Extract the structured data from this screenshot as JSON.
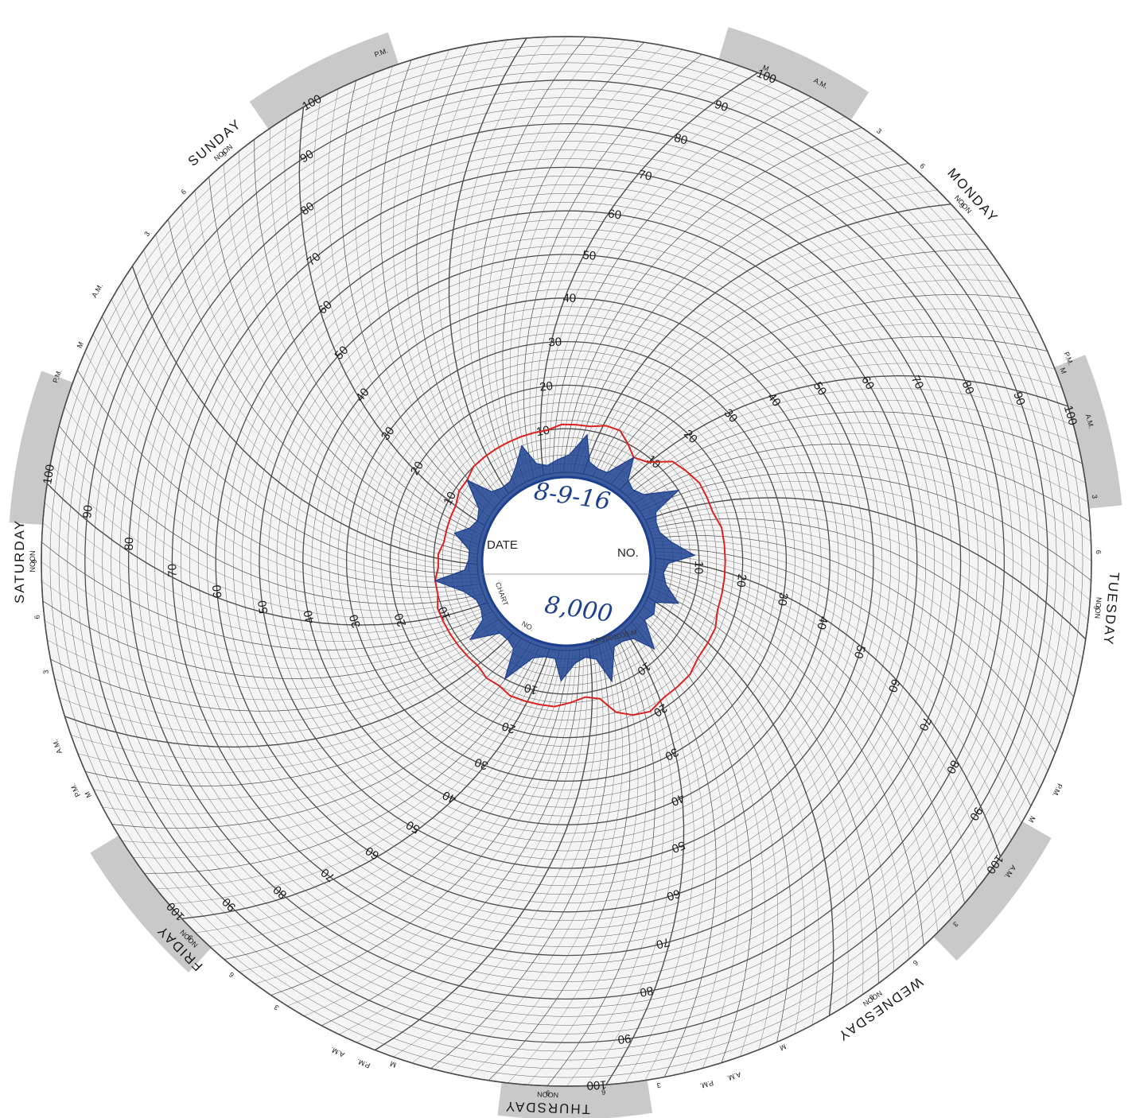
{
  "chart_data": {
    "type": "polar-line",
    "radial_scale": {
      "min": 0,
      "max": 100,
      "major_step": 10
    },
    "scale_labels": [
      "10",
      "20",
      "30",
      "40",
      "50",
      "60",
      "70",
      "80",
      "90",
      "100"
    ],
    "days": [
      "SUNDAY",
      "MONDAY",
      "TUESDAY",
      "WEDNESDAY",
      "THURSDAY",
      "FRIDAY",
      "SATURDAY"
    ],
    "noon_label": "NOON",
    "am_label": "A.M.",
    "pm_label": "P.M.",
    "midnight_label": "M",
    "hour_labels": [
      "3",
      "6",
      "9"
    ],
    "colors": {
      "grid": "#4d4d4d",
      "day_band": "#c9c9c9",
      "trace_red": "#d9231f",
      "trace_blue": "#1c3f8f"
    },
    "series": [
      {
        "color": "red",
        "values": [
          11,
          11,
          12,
          12,
          10,
          8,
          9,
          13,
          14,
          15,
          15,
          15,
          16,
          16,
          16,
          16,
          16,
          16,
          17,
          17,
          17,
          18,
          18,
          18,
          19,
          18,
          16,
          12,
          11,
          12,
          13,
          13,
          13,
          13,
          12,
          12,
          11,
          11,
          11,
          11,
          11,
          11,
          10,
          10,
          9,
          9,
          8,
          8,
          8,
          8,
          9,
          9,
          10,
          10,
          10,
          10,
          10,
          10,
          10,
          11
        ]
      },
      {
        "color": "blue",
        "values": [
          4,
          9,
          3,
          2,
          2,
          8,
          3,
          2,
          3,
          10,
          3,
          2,
          2,
          4,
          9,
          3,
          2,
          3,
          7,
          2,
          3,
          2,
          8,
          3,
          2,
          2,
          9,
          3,
          2,
          3,
          7,
          2,
          2,
          3,
          10,
          3,
          2,
          2,
          8,
          3,
          2,
          2,
          4,
          10,
          3,
          2,
          2,
          6,
          3,
          2,
          3,
          9,
          3,
          2,
          2,
          4,
          8,
          3,
          2,
          3
        ]
      }
    ]
  },
  "center": {
    "date_label": "DATE",
    "no_label": "NO.",
    "date_value": "8-9-16",
    "no_value": "8,000",
    "product_code": "GD3V01000-M",
    "chart_label": "CHART",
    "no2_label": "NO."
  }
}
